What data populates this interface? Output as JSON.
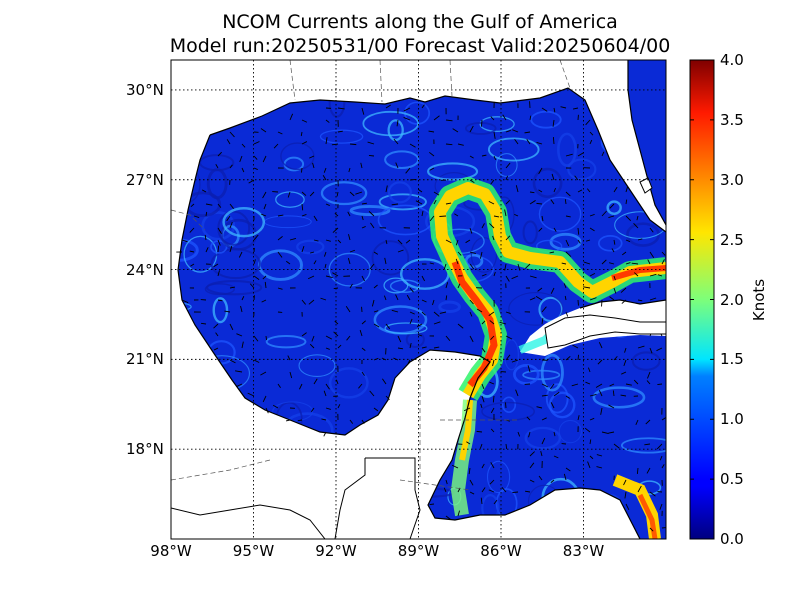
{
  "title": {
    "line1": "NCOM Currents along the Gulf of America",
    "line2": "Model run:20250531/00 Forecast Valid:20250604/00"
  },
  "map": {
    "lat_ticks": [
      "30°N",
      "27°N",
      "24°N",
      "21°N",
      "18°N"
    ],
    "lon_ticks": [
      "98°W",
      "95°W",
      "92°W",
      "89°W",
      "86°W",
      "83°W"
    ],
    "lat_values": [
      30,
      27,
      24,
      21,
      18
    ],
    "lon_values": [
      -98,
      -95,
      -92,
      -89,
      -86,
      -83
    ],
    "lat_range": [
      15.0,
      31.0
    ],
    "lon_range": [
      -98.0,
      -80.0
    ],
    "grid": true,
    "colors": {
      "land": "#ffffff",
      "ocean_base": "#0a2ad6",
      "vector": "#000000"
    }
  },
  "colorbar": {
    "label": "Knots",
    "ticks": [
      "4.0",
      "3.5",
      "3.0",
      "2.5",
      "2.0",
      "1.5",
      "1.0",
      "0.5",
      "0.0"
    ],
    "tick_values": [
      4.0,
      3.5,
      3.0,
      2.5,
      2.0,
      1.5,
      1.0,
      0.5,
      0.0
    ],
    "range": [
      0.0,
      4.0
    ],
    "colormap": "jet"
  }
}
